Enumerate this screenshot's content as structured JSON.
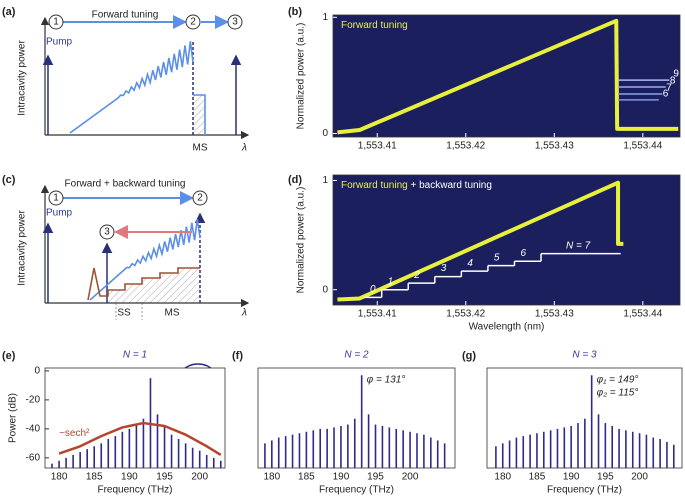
{
  "diagrams": [
    {
      "label": "(a)",
      "title": "Forward tuning",
      "y_label": "Intracavity power",
      "markers": [
        "1",
        "2",
        "3"
      ],
      "pump": "Pump",
      "regions": [
        "MS"
      ],
      "x_label": "λ"
    },
    {
      "label": "(c)",
      "title": "Forward + backward tuning",
      "y_label": "Intracavity power",
      "markers": [
        "1",
        "3",
        "2"
      ],
      "pump": "Pump",
      "regions": [
        "SS",
        "MS"
      ],
      "x_label": "λ"
    }
  ],
  "chart_data": [
    {
      "label": "(b)",
      "type": "line",
      "y_label": "Normalized power (a.u.)",
      "background": "#1c1f5e",
      "xlim": [
        1553.405,
        1553.4442
      ],
      "ylim": [
        -0.03,
        1.02
      ],
      "xticks": [
        {
          "value": 1553.41,
          "label": "1,553.41"
        },
        {
          "value": 1553.42,
          "label": "1,553.42"
        },
        {
          "value": 1553.43,
          "label": "1,553.43"
        },
        {
          "value": 1553.44,
          "label": "1,553.44"
        }
      ],
      "yticks": [
        0,
        1
      ],
      "series": [
        {
          "name": "Forward tuning",
          "color": "#e8f03c",
          "x": [
            1553.4055,
            1553.408,
            1553.437,
            1553.4371,
            1553.444
          ],
          "values": [
            0.01,
            0.03,
            0.97,
            0.04,
            0.04
          ]
        },
        {
          "name": "6",
          "color": "#7d9ae8",
          "x": [
            1553.4372,
            1553.4418
          ],
          "values": [
            0.29,
            0.29
          ]
        },
        {
          "name": "7",
          "color": "#8aa4ec",
          "x": [
            1553.4372,
            1553.4422
          ],
          "values": [
            0.34,
            0.34
          ]
        },
        {
          "name": "8",
          "color": "#98aef0",
          "x": [
            1553.4372,
            1553.4426
          ],
          "values": [
            0.4,
            0.4
          ]
        },
        {
          "name": "9",
          "color": "#a8bcf4",
          "x": [
            1553.4372,
            1553.443
          ],
          "values": [
            0.46,
            0.46
          ]
        }
      ]
    },
    {
      "label": "(d)",
      "type": "line",
      "y_label": "Normalized power (a.u.)",
      "x_label": "Wavelength (nm)",
      "background": "#1c1f5e",
      "xlim": [
        1553.405,
        1553.4442
      ],
      "ylim": [
        -0.14,
        1.05
      ],
      "xticks": [
        {
          "value": 1553.41,
          "label": "1,553.41"
        },
        {
          "value": 1553.42,
          "label": "1,553.42"
        },
        {
          "value": 1553.43,
          "label": "1,553.43"
        },
        {
          "value": 1553.44,
          "label": "1,553.44"
        }
      ],
      "yticks": [
        0,
        1
      ],
      "legend_joiner": "+",
      "series": [
        {
          "name": "Forward tuning",
          "color": "#e8f03c",
          "x": [
            1553.4055,
            1553.408,
            1553.4372,
            1553.4372,
            1553.4378
          ],
          "values": [
            -0.09,
            -0.08,
            0.98,
            0.42,
            0.42
          ]
        },
        {
          "name": "backward tuning",
          "color": "#ffffff",
          "steps": [
            {
              "label": "0",
              "start": 1553.4085,
              "end": 1553.4105,
              "level": -0.07
            },
            {
              "label": "1",
              "start": 1553.4105,
              "end": 1553.4135,
              "level": 0.0
            },
            {
              "label": "2",
              "start": 1553.4135,
              "end": 1553.4165,
              "level": 0.06
            },
            {
              "label": "3",
              "start": 1553.4165,
              "end": 1553.4195,
              "level": 0.12
            },
            {
              "label": "4",
              "start": 1553.4195,
              "end": 1553.4225,
              "level": 0.17
            },
            {
              "label": "5",
              "start": 1553.4225,
              "end": 1553.4255,
              "level": 0.22
            },
            {
              "label": "6",
              "start": 1553.4255,
              "end": 1553.4285,
              "level": 0.26
            },
            {
              "label": "N = 7",
              "start": 1553.4285,
              "end": 1553.4375,
              "level": 0.33
            }
          ]
        }
      ]
    },
    {
      "label": "(e)",
      "type": "stem",
      "title": "N = 1",
      "x_label": "Frequency (THz)",
      "y_label": "Power (dB)",
      "xlim": [
        178,
        203.6
      ],
      "ylim": [
        -67,
        2
      ],
      "xticks": [
        180,
        185,
        190,
        195,
        200
      ],
      "yticks": [
        0,
        -20,
        -40,
        -60
      ],
      "series": [
        {
          "color": "#2e2a8c",
          "x": [
            179,
            180,
            181,
            182,
            183,
            184,
            185,
            186,
            187,
            188,
            189,
            190,
            191,
            192,
            193,
            194,
            195,
            196,
            197,
            198,
            199,
            200,
            201,
            202,
            203
          ],
          "values": [
            -64,
            -62,
            -60,
            -58,
            -56,
            -54,
            -52,
            -50,
            -47,
            -45,
            -42,
            -40,
            -37,
            -33,
            -5,
            -30,
            -38,
            -44,
            -47,
            -50,
            -53,
            -55,
            -58,
            -60,
            -62
          ]
        },
        {
          "name": "~sech²",
          "type": "line",
          "color": "#b5452e",
          "x": [
            180,
            183,
            186,
            189,
            192,
            195,
            198,
            201,
            203
          ],
          "values": [
            -57,
            -52,
            -45,
            -39,
            -36,
            -38,
            -44,
            -52,
            -58
          ]
        }
      ]
    },
    {
      "label": "(f)",
      "type": "stem",
      "title": "N = 2",
      "x_label": "Frequency (THz)",
      "annotations": [
        "φ = 131°"
      ],
      "xlim": [
        178,
        206.5
      ],
      "ylim": [
        -67,
        2
      ],
      "xticks": [
        180,
        185,
        190,
        195,
        200
      ],
      "series": [
        {
          "color": "#2e2a8c",
          "x": [
            179,
            180,
            181,
            182,
            183,
            184,
            185,
            186,
            187,
            188,
            189,
            190,
            191,
            192,
            193,
            194,
            195,
            196,
            197,
            198,
            199,
            200,
            201,
            202,
            203,
            204,
            205
          ],
          "values": [
            -50,
            -48,
            -46,
            -45,
            -44,
            -43,
            -42,
            -41,
            -40,
            -40,
            -39,
            -38,
            -37,
            -33,
            -3,
            -30,
            -37,
            -38,
            -39,
            -40,
            -41,
            -42,
            -43,
            -44,
            -46,
            -48,
            -50
          ]
        }
      ]
    },
    {
      "label": "(g)",
      "type": "stem",
      "title": "N = 3",
      "x_label": "Frequency (THz)",
      "annotations": [
        "φ₁ = 149°",
        "φ₂ = 115°"
      ],
      "xlim": [
        177.7,
        206.2
      ],
      "ylim": [
        -67,
        2
      ],
      "xticks": [
        180,
        185,
        190,
        195,
        200
      ],
      "series": [
        {
          "color": "#2e2a8c",
          "x": [
            179,
            180,
            181,
            182,
            183,
            184,
            185,
            186,
            187,
            188,
            189,
            190,
            191,
            192,
            193,
            194,
            195,
            196,
            197,
            198,
            199,
            200,
            201,
            202,
            203,
            204,
            205
          ],
          "values": [
            -52,
            -50,
            -48,
            -46,
            -45,
            -44,
            -43,
            -42,
            -41,
            -40,
            -39,
            -38,
            -36,
            -33,
            -3,
            -30,
            -36,
            -38,
            -40,
            -41,
            -42,
            -43,
            -44,
            -46,
            -47,
            -49,
            -51
          ]
        }
      ]
    }
  ]
}
